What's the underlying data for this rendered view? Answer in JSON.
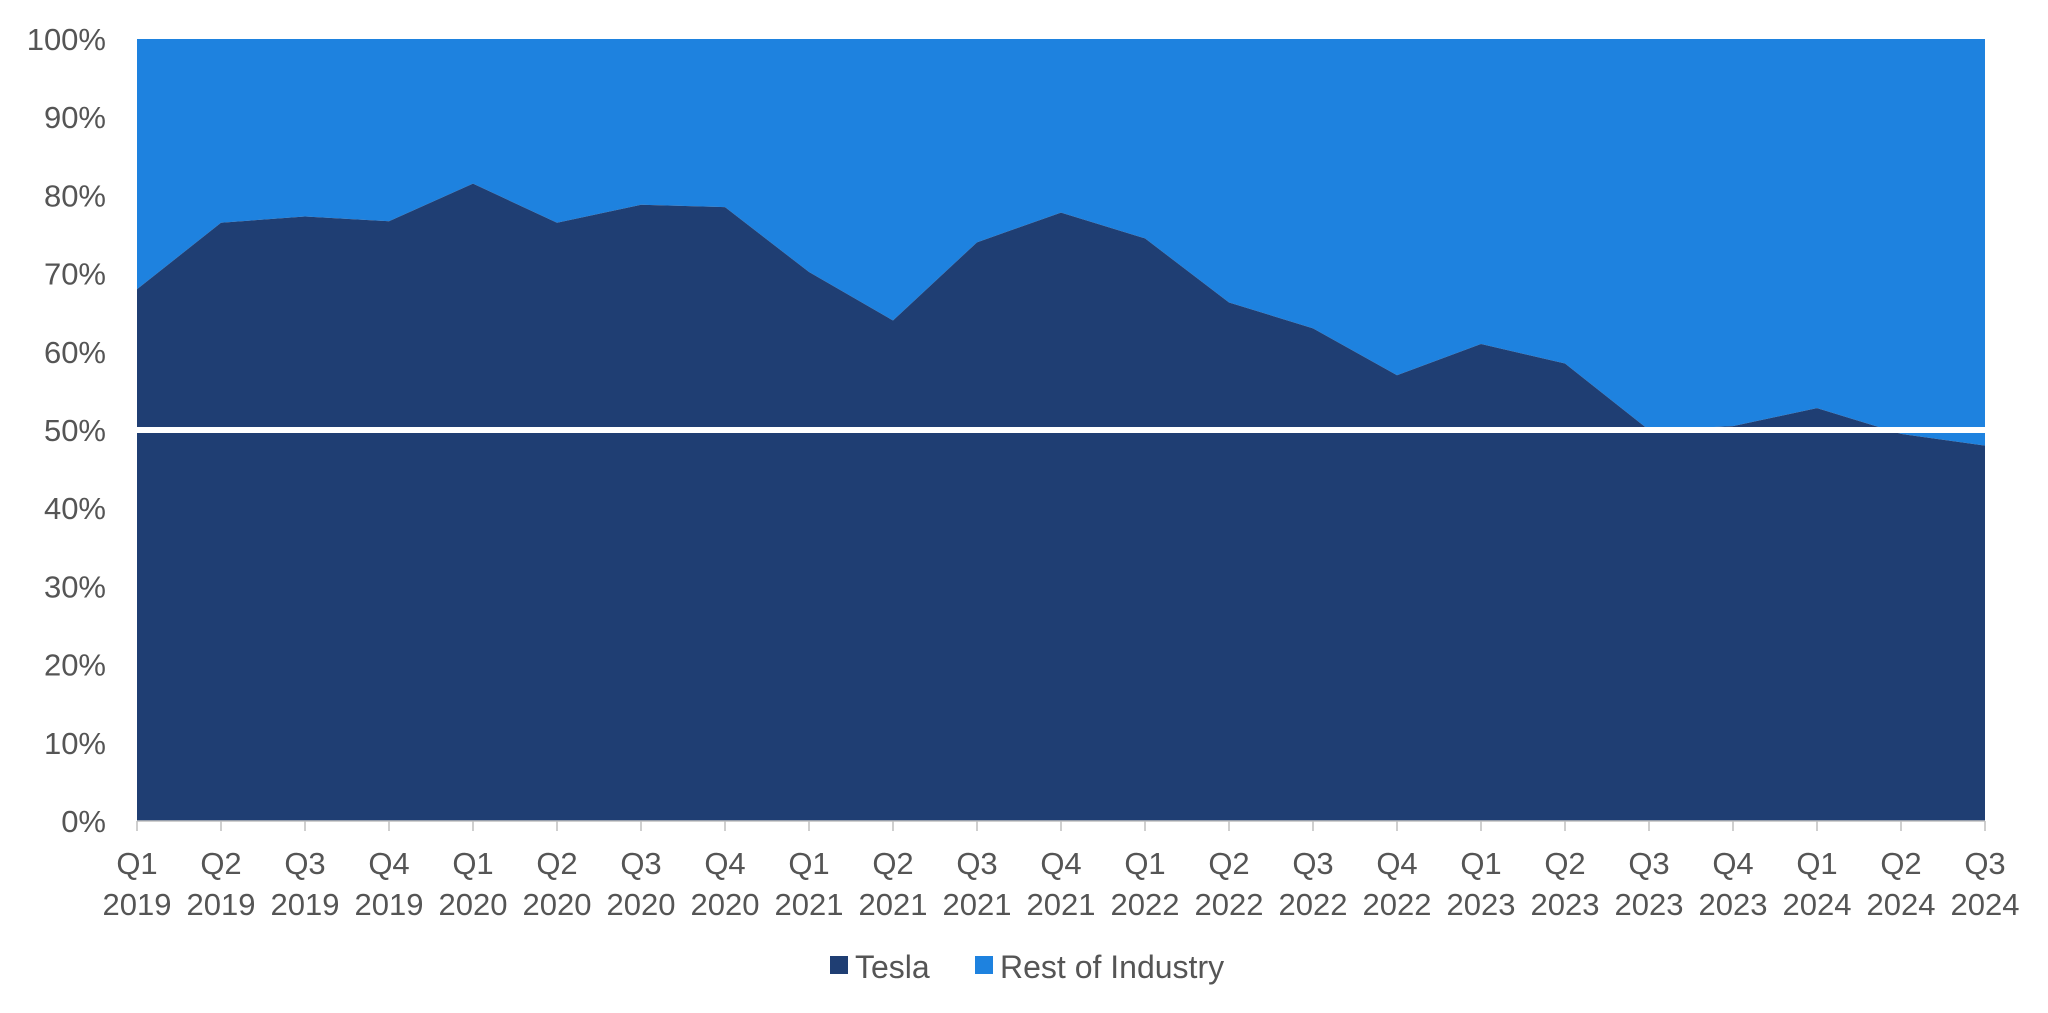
{
  "chart_data": {
    "type": "area",
    "stacked": true,
    "normalized_percent": true,
    "categories": [
      [
        "Q1",
        "2019"
      ],
      [
        "Q2",
        "2019"
      ],
      [
        "Q3",
        "2019"
      ],
      [
        "Q4",
        "2019"
      ],
      [
        "Q1",
        "2020"
      ],
      [
        "Q2",
        "2020"
      ],
      [
        "Q3",
        "2020"
      ],
      [
        "Q4",
        "2020"
      ],
      [
        "Q1",
        "2021"
      ],
      [
        "Q2",
        "2021"
      ],
      [
        "Q3",
        "2021"
      ],
      [
        "Q4",
        "2021"
      ],
      [
        "Q1",
        "2022"
      ],
      [
        "Q2",
        "2022"
      ],
      [
        "Q3",
        "2022"
      ],
      [
        "Q4",
        "2022"
      ],
      [
        "Q1",
        "2023"
      ],
      [
        "Q2",
        "2023"
      ],
      [
        "Q3",
        "2023"
      ],
      [
        "Q4",
        "2023"
      ],
      [
        "Q1",
        "2024"
      ],
      [
        "Q2",
        "2024"
      ],
      [
        "Q3",
        "2024"
      ]
    ],
    "series": [
      {
        "name": "Tesla",
        "color": "#1F3E73",
        "values": [
          68,
          76.5,
          77.3,
          76.7,
          81.5,
          76.5,
          78.8,
          78.5,
          70.2,
          64,
          74,
          77.8,
          74.5,
          66.3,
          63,
          57,
          61,
          58.5,
          50,
          50.5,
          52.8,
          49.5,
          48
        ]
      },
      {
        "name": "Rest of Industry",
        "color": "#1E82DF",
        "values": [
          32,
          23.5,
          22.7,
          23.3,
          18.5,
          23.5,
          21.2,
          21.5,
          29.8,
          36,
          26,
          22.2,
          25.5,
          33.7,
          37,
          43,
          39,
          41.5,
          50,
          49.5,
          47.2,
          50.5,
          52
        ]
      }
    ],
    "y_ticks": [
      "0%",
      "10%",
      "20%",
      "30%",
      "40%",
      "50%",
      "60%",
      "70%",
      "80%",
      "90%",
      "100%"
    ],
    "ylim": [
      0,
      100
    ],
    "reference_line": {
      "value": 50,
      "color": "#FFFFFF"
    },
    "legend_position": "bottom-center",
    "title": "",
    "xlabel": "",
    "ylabel": ""
  }
}
